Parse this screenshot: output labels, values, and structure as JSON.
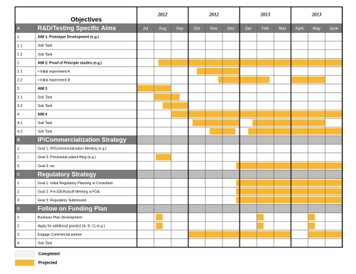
{
  "header": {
    "objectives": "Objectives",
    "years": [
      "2012",
      "2012",
      "2013",
      "2013"
    ]
  },
  "months": [
    "Jul",
    "Aug",
    "Sep",
    "Oct",
    "Nov",
    "Dec",
    "Jan",
    "Feb",
    "Mar",
    "April",
    "May",
    "June"
  ],
  "rows": [
    {
      "id": "A",
      "label": "R&D/Testing Specific Aims",
      "kind": "section"
    },
    {
      "id": "1",
      "label": "AIM 1: Prototype Development (e.g.)",
      "kind": "aim"
    },
    {
      "id": "1.1",
      "label": "Sub Task",
      "kind": "task"
    },
    {
      "id": "1.2",
      "label": "Sub Task",
      "kind": "task"
    },
    {
      "id": "2",
      "label": "AIM 2: Proof of Principle studies (e.g.)",
      "kind": "aim",
      "bars": [
        [
          1.25,
          12
        ]
      ]
    },
    {
      "id": "2.1",
      "label": "• Initial experiment A",
      "kind": "task",
      "bars": [
        [
          3.5,
          6
        ]
      ]
    },
    {
      "id": "2.2",
      "label": "• Initial experiment B",
      "kind": "task",
      "bars": [
        [
          4.75,
          7.75
        ],
        [
          9,
          11
        ]
      ]
    },
    {
      "id": "3",
      "label": "AIM 3",
      "kind": "aim",
      "bars": [
        [
          0,
          2
        ]
      ]
    },
    {
      "id": "3.1",
      "label": "Sub Task",
      "kind": "task",
      "bars": [
        [
          1,
          2.5
        ]
      ]
    },
    {
      "id": "3.2",
      "label": "Sub Task",
      "kind": "task",
      "bars": [
        [
          1.5,
          3
        ]
      ]
    },
    {
      "id": "4",
      "label": "AIM 4",
      "kind": "aim",
      "bars": [
        [
          2,
          12
        ]
      ]
    },
    {
      "id": "4.1",
      "label": "Sub Task",
      "kind": "task",
      "bars": [
        [
          3.25,
          6
        ],
        [
          6.75,
          11
        ]
      ]
    },
    {
      "id": "4.2",
      "label": "Sub Task",
      "kind": "task",
      "bars": [
        [
          4.25,
          5.75
        ],
        [
          6.5,
          12
        ]
      ]
    },
    {
      "id": "B",
      "label": "IP/Commercialization Strategy",
      "kind": "section"
    },
    {
      "id": "1",
      "label": "Goal 1: IP/Commercialization Meeting (e.g.)",
      "kind": "task"
    },
    {
      "id": "2",
      "label": "Goal 2: Provisional patent filing (e.g.)",
      "kind": "task",
      "bars": [
        [
          1.1,
          2
        ]
      ]
    },
    {
      "id": "3",
      "label": "Goal 3: etc",
      "kind": "task",
      "bars": [
        [
          5.8,
          12
        ]
      ]
    },
    {
      "id": "C",
      "label": "Regulatory Strategy",
      "kind": "section"
    },
    {
      "id": "1",
      "label": "Goal 1: Initial Regulatory Planning w Consultant",
      "kind": "task",
      "bars": [
        [
          5.8,
          12
        ]
      ]
    },
    {
      "id": "2",
      "label": "Goal 2: Pre-IDE/Kickoff Meeting w FDA",
      "kind": "task",
      "bars": [
        [
          5.8,
          12
        ]
      ]
    },
    {
      "id": "3",
      "label": "Goal 3: Regulatory Submission",
      "kind": "task",
      "bars": [
        [
          5.8,
          12
        ]
      ]
    },
    {
      "id": "D",
      "label": "Follow on Funding Plan",
      "kind": "section"
    },
    {
      "id": "1",
      "label": "Business Plan Development",
      "kind": "task",
      "bars": [
        [
          1.1,
          1.5
        ],
        [
          7,
          7.4
        ],
        [
          10,
          10.4
        ]
      ]
    },
    {
      "id": "2",
      "label": "Apply for additional grant(s) (A, B, C) (e.g.)",
      "kind": "task",
      "bars": [
        [
          1.1,
          1.5
        ],
        [
          7,
          7.4
        ],
        [
          10,
          10.4
        ]
      ]
    },
    {
      "id": "3",
      "label": "Engage Commercial partner",
      "kind": "task",
      "bars": [
        [
          3,
          9
        ],
        [
          10,
          12
        ]
      ]
    },
    {
      "id": "4",
      "label": "Sub Task",
      "kind": "task"
    }
  ],
  "legend": {
    "completed": "Completed",
    "projected": "Projected"
  }
}
